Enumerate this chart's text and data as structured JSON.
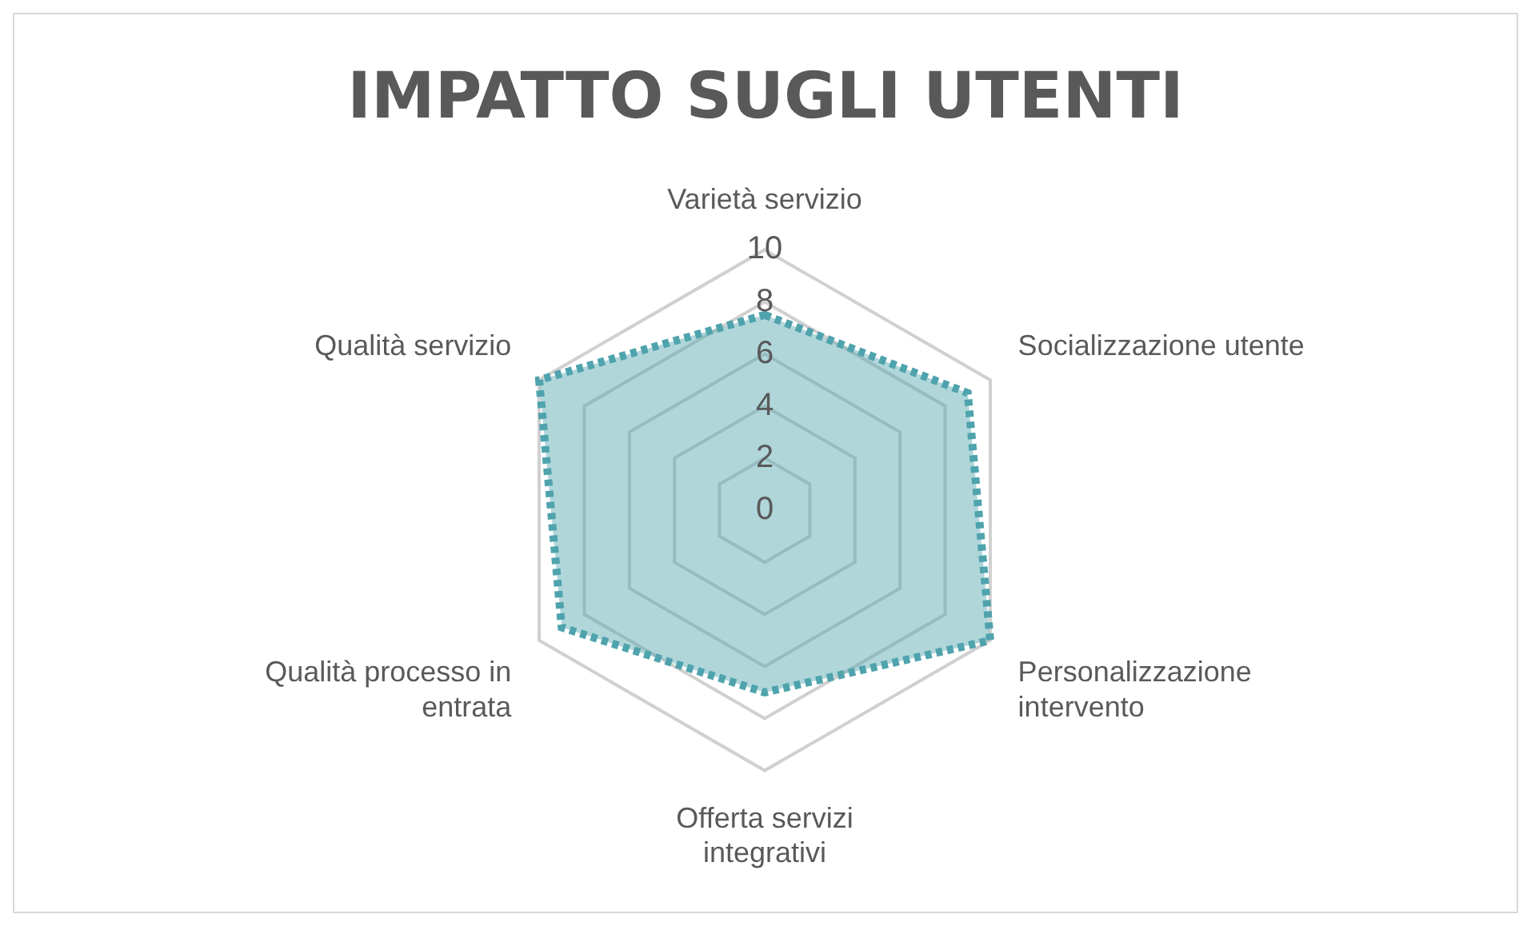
{
  "chart_data": {
    "type": "radar",
    "title": "IMPATTO SUGLI UTENTI",
    "categories": [
      "Varietà servizio",
      "Socializzazione utente",
      "Personalizzazione intervento",
      "Offerta servizi integrativi",
      "Qualità processo in entrata",
      "Qualità servizio"
    ],
    "series": [
      {
        "color": "#4fa3ad",
        "values": [
          7.5,
          9,
          10,
          7,
          9,
          10
        ]
      }
    ],
    "ylim": [
      0,
      10
    ],
    "yticks": [
      0,
      2,
      4,
      6,
      8,
      10
    ],
    "grid": true,
    "legend": false,
    "marker": "none",
    "line_style": "dotted"
  }
}
